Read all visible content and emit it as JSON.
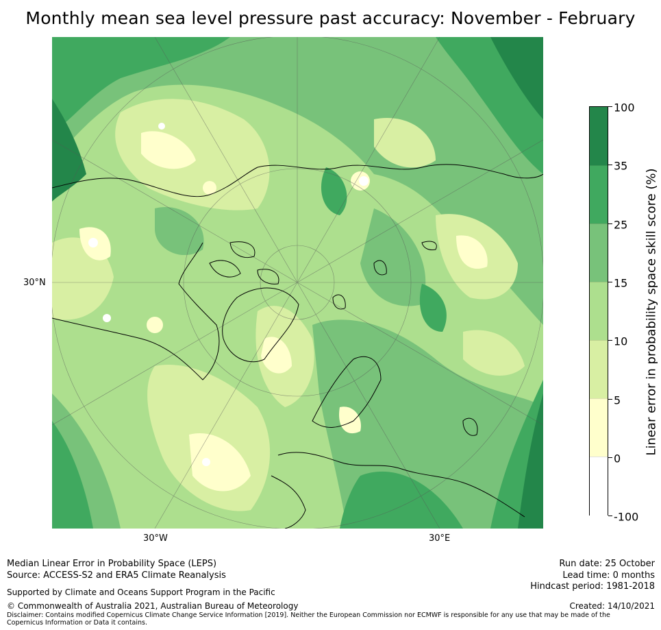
{
  "title": "Monthly mean sea level pressure past accuracy: November - February",
  "map": {
    "labels": {
      "left_lat": "30°N",
      "bottom_west": "30°W",
      "bottom_east": "30°E"
    },
    "colors": {
      "darkest": "#23864a",
      "dark": "#40a95f",
      "mid": "#78c27a",
      "light": "#addf8e",
      "pale": "#d8efa3",
      "cream": "#ffffcc",
      "white": "#ffffff",
      "coast": "#000000"
    }
  },
  "colorbar": {
    "title": "Linear error in probability space skill score (%)",
    "ticks": [
      "100",
      "35",
      "25",
      "15",
      "10",
      "5",
      "0",
      "-100"
    ],
    "bands": [
      {
        "range": "35 to 100",
        "color": "#23864a"
      },
      {
        "range": "25 to 35",
        "color": "#40a95f"
      },
      {
        "range": "15 to 25",
        "color": "#78c27a"
      },
      {
        "range": "10 to 15",
        "color": "#addf8e"
      },
      {
        "range": "5 to 10",
        "color": "#d8efa3"
      },
      {
        "range": "0 to 5",
        "color": "#ffffcc"
      },
      {
        "range": "-100 to 0",
        "color": "#ffffff"
      }
    ]
  },
  "footer": {
    "metric": "Median Linear Error in Probability Space (LEPS)",
    "source": "Source: ACCESS-S2 and ERA5 Climate Reanalysis",
    "support": "Supported by Climate and Oceans Support Program in the Pacific",
    "copyright": "© Commonwealth of Australia 2021, Australian Bureau of Meteorology",
    "disclaimer": "Disclaimer: Contains modified Copernicus Climate Change Service Information [2019]. Neither the European Commission nor ECMWF is responsible for any use that may be made of the Copernicus Information or Data it contains.",
    "run_date": "Run date: 25 October",
    "lead_time": "Lead time: 0 months",
    "hindcast": "Hindcast period: 1981-2018",
    "created": "Created: 14/10/2021"
  }
}
